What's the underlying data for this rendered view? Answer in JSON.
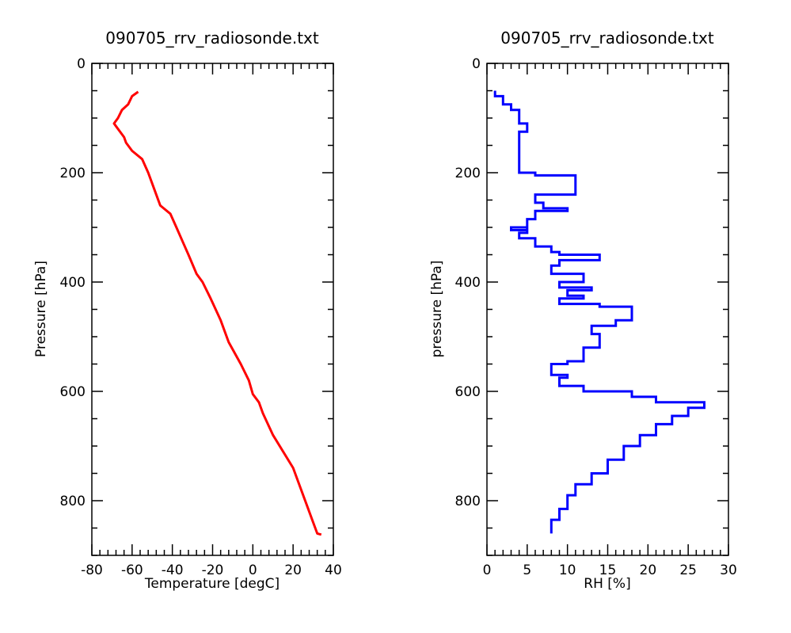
{
  "chart_data": [
    {
      "type": "line",
      "title": "090705_rrv_radiosonde.txt",
      "xlabel": "Temperature [degC]",
      "ylabel": "Pressure [hPa]",
      "xlim": [
        -80,
        40
      ],
      "ylim": [
        900,
        0
      ],
      "y_inverted": true,
      "xticks": [
        "-80",
        "-60",
        "-40",
        "-20",
        "0",
        "20",
        "40"
      ],
      "yticks": [
        "0",
        "200",
        "400",
        "600",
        "800"
      ],
      "grid": false,
      "color": "#ff0000",
      "series": [
        {
          "x": [
            -57,
            -60,
            -62,
            -65,
            -67,
            -69,
            -68,
            -66,
            -64,
            -63,
            -60,
            -55,
            -52,
            -49,
            -46,
            -41,
            -38,
            -35,
            -32,
            -28,
            -25,
            -21,
            -16,
            -12,
            -6,
            -2,
            0,
            3,
            5,
            10,
            20,
            25,
            30,
            32,
            34
          ],
          "y": [
            52,
            60,
            75,
            85,
            100,
            110,
            115,
            125,
            135,
            145,
            160,
            175,
            200,
            230,
            260,
            275,
            300,
            325,
            350,
            385,
            400,
            430,
            470,
            510,
            550,
            580,
            605,
            620,
            640,
            680,
            740,
            790,
            840,
            860,
            862
          ]
        }
      ]
    },
    {
      "type": "line",
      "title": "090705_rrv_radiosonde.txt",
      "xlabel": "RH [%]",
      "ylabel": "pressure [hPa]",
      "xlim": [
        0,
        30
      ],
      "ylim": [
        900,
        0
      ],
      "y_inverted": true,
      "xticks": [
        "0",
        "5",
        "10",
        "15",
        "20",
        "25",
        "30"
      ],
      "yticks": [
        "0",
        "200",
        "400",
        "600",
        "800"
      ],
      "grid": false,
      "color": "#0000ff",
      "series": [
        {
          "x": [
            1,
            2,
            3,
            4,
            4,
            5,
            4,
            4,
            6,
            11,
            6,
            7,
            10,
            6,
            5,
            3,
            5,
            4,
            6,
            8,
            9,
            14,
            9,
            8,
            12,
            9,
            13,
            10,
            12,
            9,
            14,
            18,
            16,
            13,
            14,
            12,
            10,
            8,
            10,
            9,
            12,
            18,
            21,
            25,
            27,
            25,
            23,
            21,
            19,
            17,
            15,
            13,
            11,
            10,
            9,
            8,
            8
          ],
          "y": [
            50,
            60,
            75,
            85,
            100,
            110,
            125,
            185,
            200,
            205,
            240,
            255,
            265,
            270,
            285,
            305,
            300,
            310,
            320,
            335,
            345,
            350,
            360,
            370,
            385,
            400,
            410,
            415,
            425,
            430,
            440,
            445,
            470,
            480,
            495,
            520,
            545,
            550,
            570,
            575,
            590,
            600,
            610,
            620,
            620,
            630,
            645,
            660,
            680,
            700,
            725,
            750,
            770,
            790,
            815,
            835,
            860
          ]
        }
      ]
    }
  ]
}
